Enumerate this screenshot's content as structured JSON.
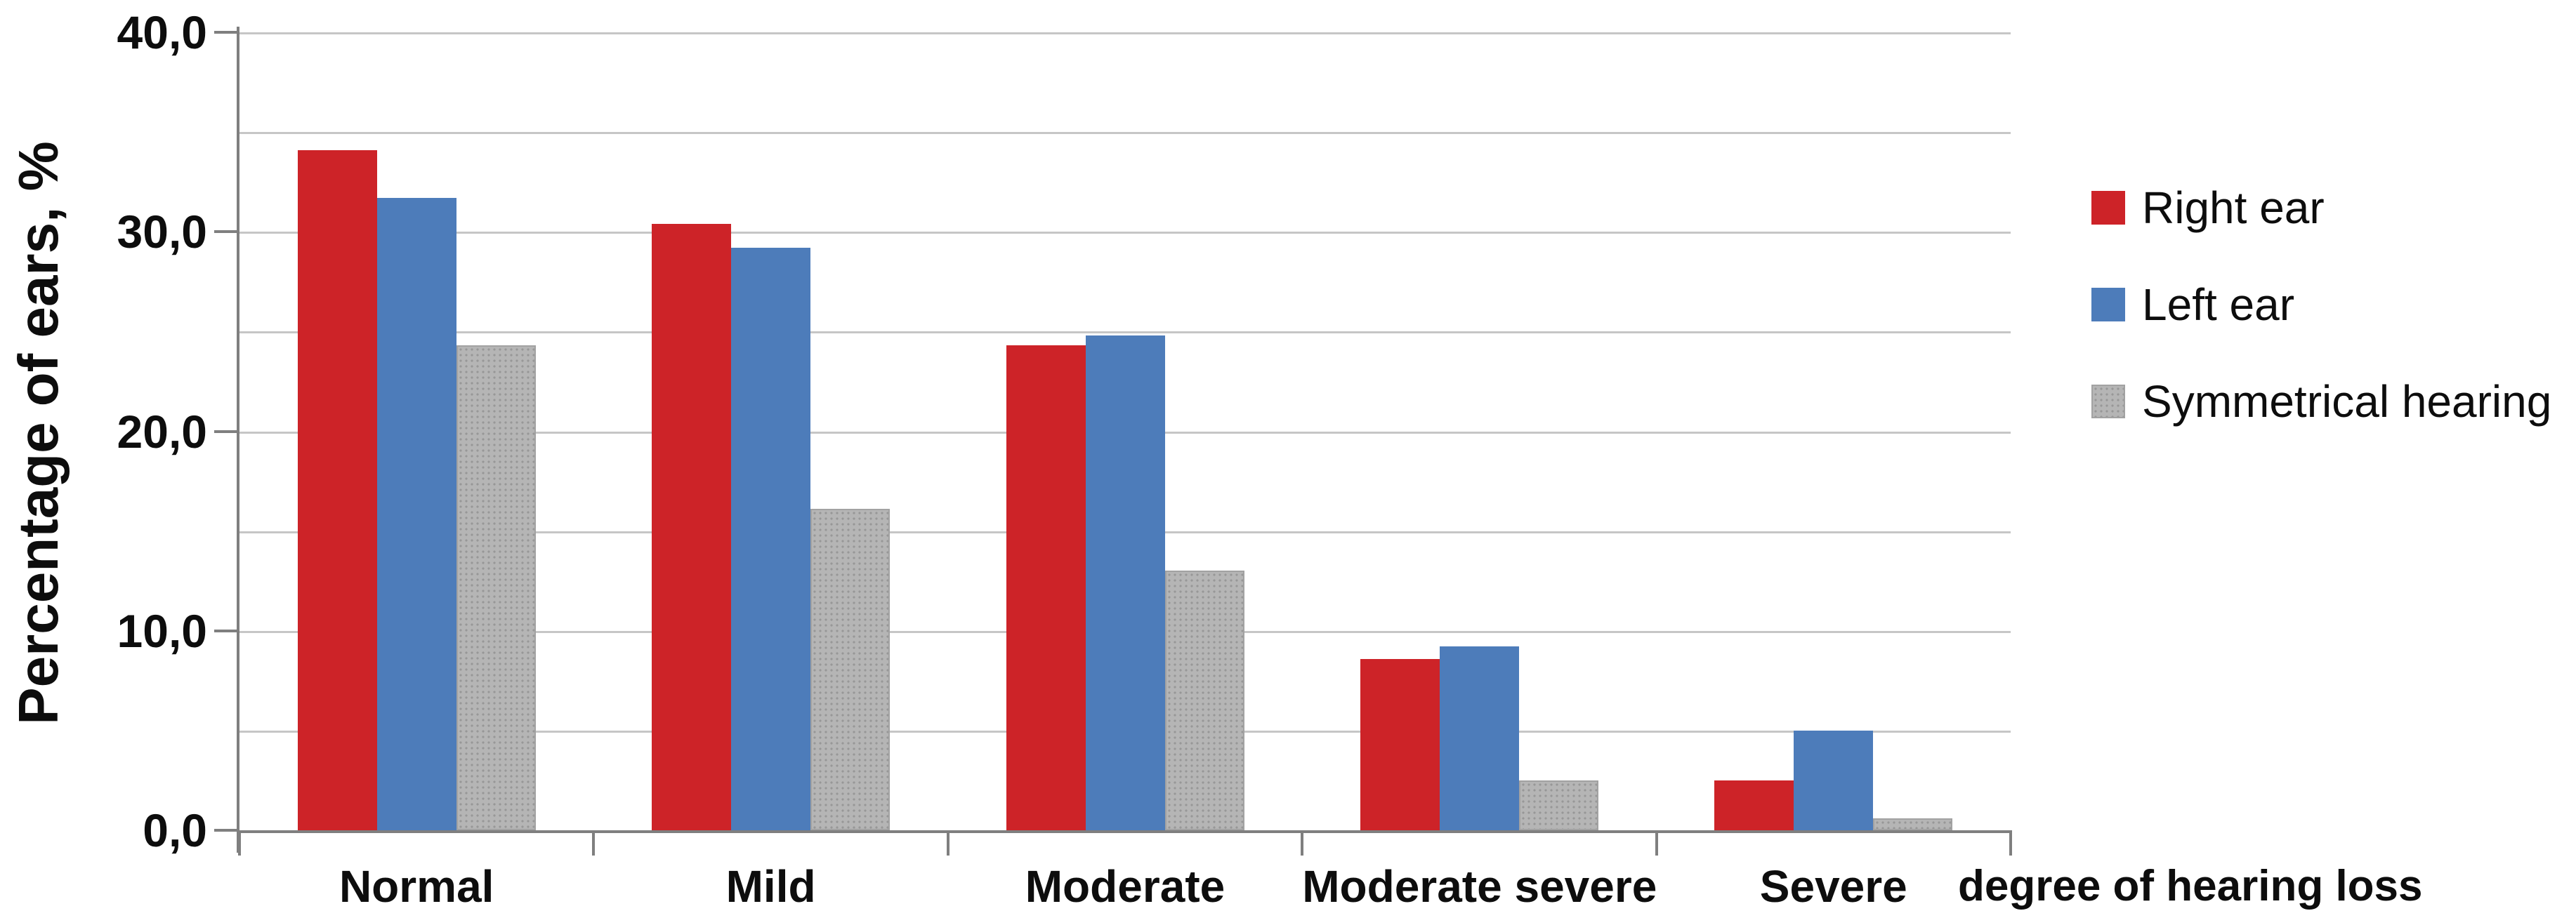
{
  "chart_data": {
    "type": "bar",
    "title": "",
    "categories": [
      "Normal",
      "Mild",
      "Moderate",
      "Moderate severe",
      "Severe"
    ],
    "series": [
      {
        "name": "Right ear",
        "color": "#cd2328",
        "fill_pattern": "solid",
        "values": [
          34.1,
          30.4,
          24.3,
          8.6,
          2.5
        ]
      },
      {
        "name": "Left ear",
        "color": "#4d7cba",
        "fill_pattern": "solid",
        "values": [
          31.7,
          29.2,
          24.8,
          9.2,
          5.0
        ]
      },
      {
        "name": "Symmetrical hearing",
        "color": "#b5b5b5",
        "fill_pattern": "dotted",
        "values": [
          24.3,
          16.1,
          13.0,
          2.5,
          0.6
        ]
      }
    ],
    "ylabel": "Percentage of ears, %",
    "xlabel": "degree of hearing loss",
    "ylim": [
      0,
      40
    ],
    "ytick_values": [
      0,
      10,
      20,
      30,
      40
    ],
    "ytick_labels": [
      "0,0",
      "10,0",
      "20,0",
      "30,0",
      "40,0"
    ],
    "grid_step": 5,
    "grid": "horizontal",
    "decimal_separator": ",",
    "legend_position": "right",
    "colors": {
      "gridline": "#c6c6c6",
      "axis": "#7f7f7f",
      "text": "#0d0d0d",
      "background": "#ffffff"
    }
  }
}
